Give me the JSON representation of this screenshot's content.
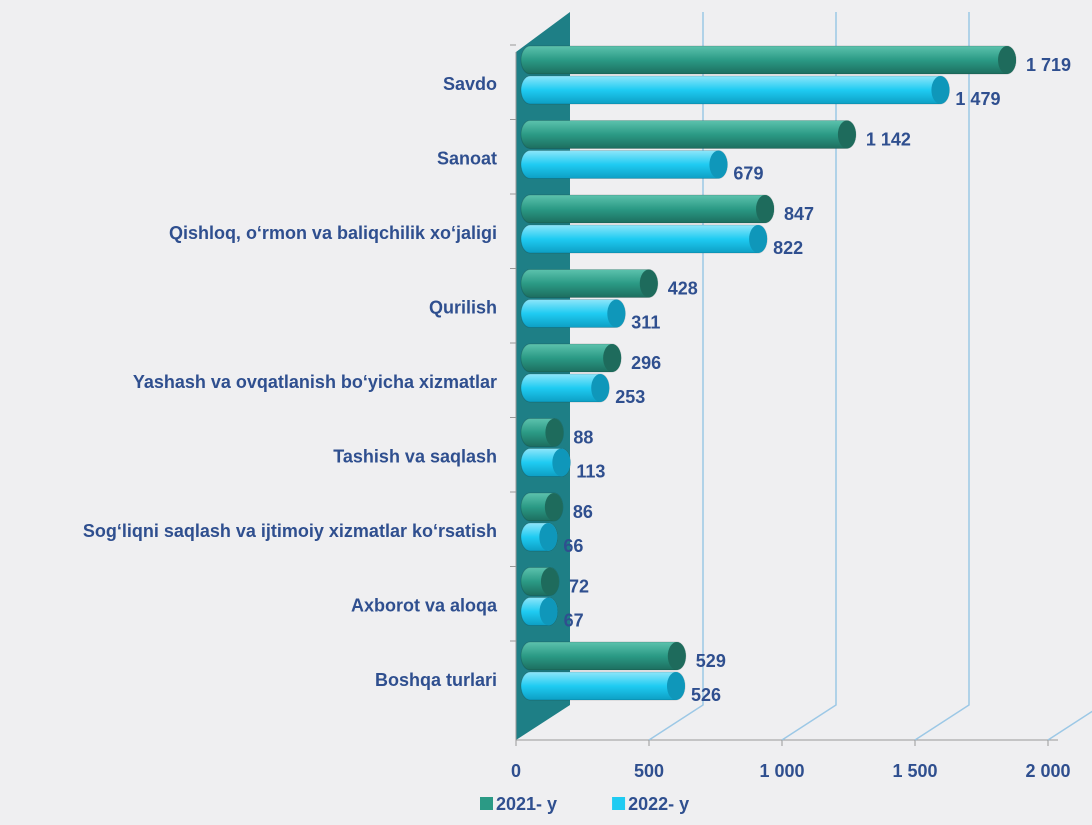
{
  "chart_data": {
    "type": "bar3d",
    "orientation": "horizontal",
    "categories": [
      "Savdo",
      "Sanoat",
      "Qishloq, o‘rmon va baliqchilik xo‘jaligi",
      "Qurilish",
      "Yashash va ovqatlanish bo‘yicha xizmatlar",
      "Tashish va saqlash",
      "Sog‘liqni saqlash va ijtimoiy xizmatlar ko‘rsatish",
      "Axborot va aloqa",
      "Boshqa turlari"
    ],
    "series": [
      {
        "name": "2021- y",
        "color": "#2b9a85",
        "values": [
          1719,
          1142,
          847,
          428,
          296,
          88,
          86,
          72,
          529
        ],
        "value_labels": [
          "1 719",
          "1 142",
          "847",
          "428",
          "296",
          "88",
          "86",
          "72",
          "529"
        ]
      },
      {
        "name": "2022- y",
        "color": "#1fcbf2",
        "values": [
          1479,
          679,
          822,
          311,
          253,
          113,
          66,
          67,
          526
        ],
        "value_labels": [
          "1 479",
          "679",
          "822",
          "311",
          "253",
          "113",
          "66",
          "67",
          "526"
        ]
      }
    ],
    "xlim": [
      0,
      2000
    ],
    "xticks": [
      0,
      500,
      {
        "value": 1000,
        "label": "1 000"
      },
      {
        "value": 1500,
        "label": "1 500"
      },
      {
        "value": 2000,
        "label": "2 000"
      }
    ],
    "grid": true,
    "legend": "bottom"
  }
}
